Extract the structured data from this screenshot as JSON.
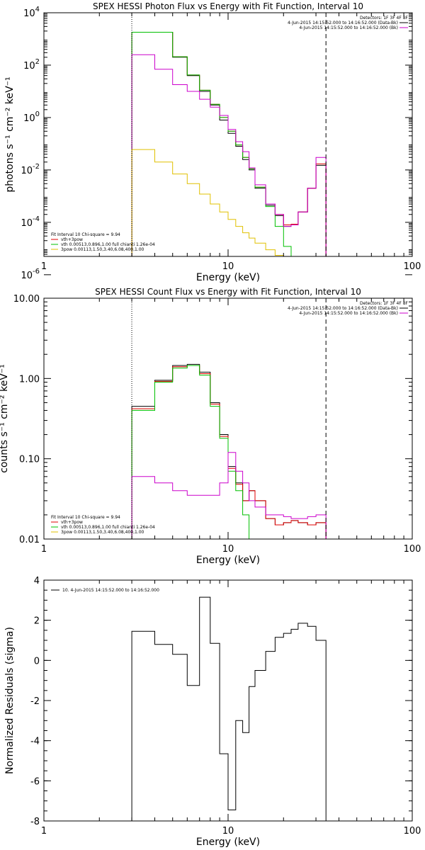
{
  "chart_data": [
    {
      "type": "line",
      "title": "SPEX HESSI Photon Flux vs Energy with Fit Function, Interval 10",
      "xlabel": "Energy (keV)",
      "ylabel": "photons s⁻¹ cm⁻² keV⁻¹",
      "xscale": "log",
      "yscale": "log",
      "xlim": [
        1,
        100
      ],
      "ylim": [
        5e-06,
        10000
      ],
      "xticks": [
        {
          "v": 1,
          "label": "1"
        },
        {
          "v": 10,
          "label": "10"
        },
        {
          "v": 100,
          "label": "100"
        }
      ],
      "yticks": [
        {
          "v": 10000,
          "base": "10",
          "exp": "4"
        },
        {
          "v": 100,
          "base": "10",
          "exp": "2"
        },
        {
          "v": 1,
          "base": "10",
          "exp": "0"
        },
        {
          "v": 0.01,
          "base": "10",
          "exp": "-2"
        },
        {
          "v": 0.0001,
          "base": "10",
          "exp": "-4"
        },
        {
          "v": 1e-06,
          "base": "10",
          "exp": "-6"
        }
      ],
      "header": {
        "title": "Detectors: 1F 3F 4F 8F",
        "lines": [
          {
            "color": "#000000",
            "text": "4-Jun-2015 14:15:52.000 to 14:16:52.000 (Data-Bk)"
          },
          {
            "color": "#cc00cc",
            "text": "4-Jun-2015 14:15:52.000 to 14:16:52.000 (Bk)"
          }
        ]
      },
      "legend": {
        "title": "Fit Interval 10   Chi-square = 9.94",
        "entries": [
          {
            "color": "#e00000",
            "text": "vth+3pow"
          },
          {
            "color": "#00c000",
            "text": "vth 0.00513,0.896,1.00   full chianti 1.26e-04"
          },
          {
            "color": "#e0c000",
            "text": "3pow 0.00113,1.50,3.40,6.08,400,1.00"
          }
        ]
      },
      "vlines": [
        {
          "x": 3.0,
          "style": "dotted",
          "color": "#000000"
        },
        {
          "x": 34.0,
          "style": "dashed",
          "color": "#000000"
        }
      ],
      "bin_edges": [
        3.0,
        4.0,
        5.0,
        6.0,
        7.0,
        8.0,
        9.0,
        10.0,
        11.0,
        12.0,
        13.0,
        14.0,
        16.0,
        18.0,
        20.0,
        22.0,
        24.0,
        27.0,
        30.0,
        34.0
      ],
      "series": [
        {
          "color": "#000000",
          "values": [
            1800,
            1800,
            200,
            40,
            10,
            3,
            0.8,
            0.25,
            0.08,
            0.025,
            0.01,
            0.002,
            0.00045,
            0.00018,
            7e-05,
            8e-05,
            0.00025,
            0.002,
            0.015
          ]
        },
        {
          "color": "#e00000",
          "values": [
            1800,
            1800,
            210,
            42,
            11,
            3.2,
            1.0,
            0.3,
            0.09,
            0.03,
            0.011,
            0.0022,
            0.0005,
            0.0002,
            8e-05,
            8.5e-05,
            0.00025,
            0.002,
            0.017
          ]
        },
        {
          "color": "#00c000",
          "values": [
            1800,
            1800,
            210,
            42,
            11,
            3.2,
            1.0,
            0.3,
            0.09,
            0.03,
            0.011,
            0.0022,
            0.0004,
            7e-05,
            1.2e-05,
            1.2e-06,
            null,
            null,
            null
          ]
        },
        {
          "color": "#cc00cc",
          "values": [
            250,
            70,
            18,
            10,
            5,
            2.5,
            1.2,
            0.35,
            0.12,
            0.05,
            0.012,
            0.0027,
            0.0005,
            0.0002,
            7e-05,
            8e-05,
            0.00025,
            0.002,
            0.03
          ]
        },
        {
          "color": "#e0c000",
          "values": [
            0.06,
            0.02,
            0.007,
            0.003,
            0.0012,
            0.0005,
            0.00025,
            0.00013,
            7e-05,
            4e-05,
            2.5e-05,
            1.6e-05,
            9e-06,
            5.5e-06,
            3.5e-06,
            null,
            null,
            null,
            null
          ]
        }
      ]
    },
    {
      "type": "line",
      "title": "SPEX HESSI Count Flux vs Energy with Fit Function, Interval 10",
      "xlabel": "Energy (keV)",
      "ylabel": "counts s⁻¹ cm⁻² keV⁻¹",
      "xscale": "log",
      "yscale": "log",
      "xlim": [
        1,
        100
      ],
      "ylim": [
        0.01,
        10
      ],
      "xticks": [
        {
          "v": 1,
          "label": "1"
        },
        {
          "v": 10,
          "label": "10"
        },
        {
          "v": 100,
          "label": "100"
        }
      ],
      "yticks": [
        {
          "v": 10,
          "label": "10.00"
        },
        {
          "v": 1,
          "label": "1.00"
        },
        {
          "v": 0.1,
          "label": "0.10"
        },
        {
          "v": 0.01,
          "label": "0.01"
        }
      ],
      "header": {
        "title": "Detectors: 1F 3F 4F 8F",
        "lines": [
          {
            "color": "#000000",
            "text": "4-Jun-2015 14:15:52.000 to 14:16:52.000 (Data-Bk)"
          },
          {
            "color": "#cc00cc",
            "text": "4-Jun-2015 14:15:52.000 to 14:16:52.000 (Bk)"
          }
        ]
      },
      "legend": {
        "title": "Fit Interval 10   Chi-square = 9.94",
        "entries": [
          {
            "color": "#e00000",
            "text": "vth+3pow"
          },
          {
            "color": "#00c000",
            "text": "vth 0.00513,0.896,1.00   full chianti 1.26e-04"
          },
          {
            "color": "#e0c000",
            "text": "3pow 0.00113,1.50,3.40,6.08,400,1.00"
          }
        ]
      },
      "vlines": [
        {
          "x": 3.0,
          "style": "dotted",
          "color": "#000000"
        },
        {
          "x": 34.0,
          "style": "dashed",
          "color": "#000000"
        }
      ],
      "bin_edges": [
        3.0,
        4.0,
        5.0,
        6.0,
        7.0,
        8.0,
        9.0,
        10.0,
        11.0,
        12.0,
        13.0,
        14.0,
        16.0,
        18.0,
        20.0,
        22.0,
        24.0,
        27.0,
        30.0,
        34.0
      ],
      "series": [
        {
          "color": "#000000",
          "values": [
            0.45,
            0.95,
            1.45,
            1.5,
            1.2,
            0.5,
            0.2,
            0.08,
            0.05,
            0.03,
            0.04,
            0.03,
            0.018,
            0.015,
            0.016,
            0.017,
            0.016,
            0.015,
            0.016
          ]
        },
        {
          "color": "#e00000",
          "values": [
            0.42,
            0.92,
            1.4,
            1.45,
            1.15,
            0.48,
            0.19,
            0.076,
            0.048,
            0.03,
            0.04,
            0.03,
            0.018,
            0.015,
            0.016,
            0.017,
            0.016,
            0.015,
            0.016
          ]
        },
        {
          "color": "#00c000",
          "values": [
            0.4,
            0.9,
            1.35,
            1.45,
            1.1,
            0.45,
            0.18,
            0.07,
            0.04,
            0.02,
            0.01,
            0.005,
            null,
            null,
            null,
            null,
            null,
            null,
            null
          ]
        },
        {
          "color": "#cc00cc",
          "values": [
            0.06,
            0.05,
            0.04,
            0.035,
            0.035,
            0.035,
            0.05,
            0.12,
            0.07,
            0.05,
            0.03,
            0.025,
            0.02,
            0.02,
            0.019,
            0.018,
            0.018,
            0.019,
            0.02
          ]
        }
      ]
    },
    {
      "type": "line",
      "title": "",
      "xlabel": "Energy (keV)",
      "ylabel": "Normalized Residuals (sigma)",
      "xscale": "log",
      "yscale": "linear",
      "xlim": [
        1,
        100
      ],
      "ylim": [
        -8,
        4
      ],
      "xticks": [
        {
          "v": 1,
          "label": "1"
        },
        {
          "v": 10,
          "label": "10"
        },
        {
          "v": 100,
          "label": "100"
        }
      ],
      "yticks": [
        {
          "v": 4,
          "label": "4"
        },
        {
          "v": 2,
          "label": "2"
        },
        {
          "v": 0,
          "label": "0"
        },
        {
          "v": -2,
          "label": "-2"
        },
        {
          "v": -4,
          "label": "-4"
        },
        {
          "v": -6,
          "label": "-6"
        },
        {
          "v": -8,
          "label": "-8"
        }
      ],
      "legend": {
        "entries": [
          {
            "color": "#000000",
            "text": "10.  4-Jun-2015 14:15:52.000 to 14:16:52.000"
          }
        ]
      },
      "bin_edges": [
        3.0,
        4.0,
        5.0,
        6.0,
        7.0,
        8.0,
        9.0,
        10.0,
        11.0,
        12.0,
        13.0,
        14.0,
        16.0,
        18.0,
        20.0,
        22.0,
        24.0,
        27.0,
        30.0,
        34.0
      ],
      "series": [
        {
          "color": "#000000",
          "values": [
            1.45,
            0.8,
            0.3,
            -1.25,
            3.15,
            0.85,
            -4.65,
            -7.45,
            -3.0,
            -3.6,
            -1.3,
            -0.5,
            0.45,
            1.15,
            1.35,
            1.55,
            1.85,
            1.7,
            1.0
          ]
        }
      ]
    }
  ]
}
